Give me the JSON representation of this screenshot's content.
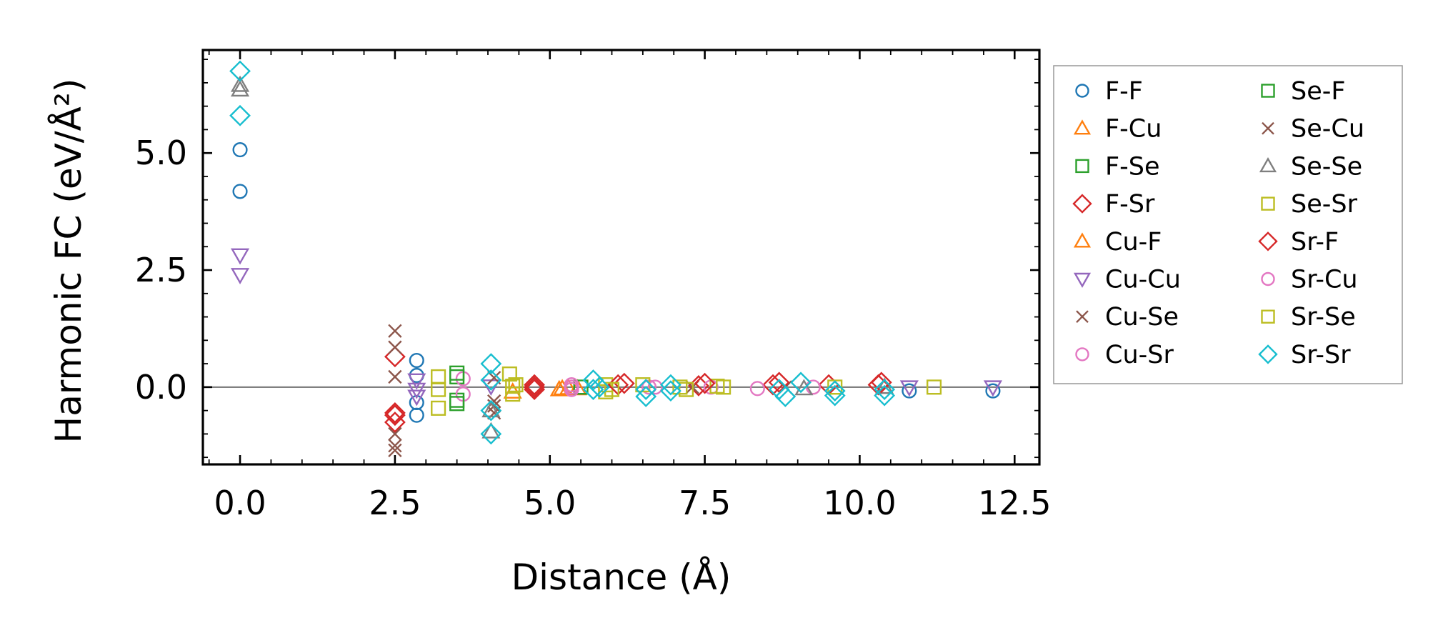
{
  "chart_data": {
    "type": "scatter",
    "xlabel": "Distance (Å)",
    "ylabel": "Harmonic FC (eV/Å²)",
    "xlim": [
      -0.6,
      12.9
    ],
    "ylim": [
      -1.65,
      7.2
    ],
    "xticks": [
      0.0,
      2.5,
      5.0,
      7.5,
      10.0,
      12.5
    ],
    "xtick_labels": [
      "0.0",
      "2.5",
      "5.0",
      "7.5",
      "10.0",
      "12.5"
    ],
    "yticks": [
      0.0,
      2.5,
      5.0
    ],
    "ytick_labels": [
      "0.0",
      "2.5",
      "5.0"
    ],
    "x_minor_step": 0.5,
    "y_minor_step": 0.5,
    "reference_line_y": 0.0,
    "legend_position": "outside-right",
    "legend_columns": 2,
    "series": [
      {
        "name": "F-F",
        "marker": "circle",
        "color": "#1f77b4",
        "points": [
          [
            0.0,
            5.07
          ],
          [
            0.0,
            4.18
          ],
          [
            2.85,
            0.57
          ],
          [
            2.85,
            0.25
          ],
          [
            2.85,
            -0.33
          ],
          [
            2.85,
            -0.6
          ],
          [
            10.8,
            -0.08
          ],
          [
            12.15,
            -0.08
          ]
        ]
      },
      {
        "name": "F-Cu",
        "marker": "triangle-up",
        "color": "#ff7f0e",
        "points": [
          [
            5.15,
            -0.05
          ],
          [
            5.3,
            -0.02
          ],
          [
            5.45,
            -0.03
          ]
        ]
      },
      {
        "name": "F-Se",
        "marker": "square",
        "color": "#2ca02c",
        "points": [
          [
            3.5,
            0.22
          ],
          [
            3.5,
            -0.28
          ],
          [
            5.5,
            0.0
          ]
        ]
      },
      {
        "name": "F-Sr",
        "marker": "diamond",
        "color": "#d62728",
        "points": [
          [
            2.5,
            0.65
          ],
          [
            2.5,
            -0.55
          ],
          [
            2.5,
            -0.75
          ],
          [
            4.75,
            0.05
          ],
          [
            4.75,
            -0.05
          ],
          [
            6.2,
            0.08
          ],
          [
            7.4,
            0.03
          ],
          [
            8.6,
            0.05
          ],
          [
            9.5,
            0.05
          ],
          [
            10.3,
            0.05
          ]
        ]
      },
      {
        "name": "Cu-F",
        "marker": "triangle-up",
        "color": "#ff7f0e",
        "points": [
          [
            4.4,
            -0.1
          ],
          [
            5.2,
            -0.03
          ]
        ]
      },
      {
        "name": "Cu-Cu",
        "marker": "triangle-down",
        "color": "#9467bd",
        "points": [
          [
            0.0,
            2.82
          ],
          [
            0.0,
            2.4
          ],
          [
            2.85,
            0.15
          ],
          [
            2.85,
            -0.05
          ],
          [
            2.85,
            -0.2
          ],
          [
            4.05,
            0.02
          ],
          [
            10.8,
            0.0
          ],
          [
            12.15,
            0.0
          ]
        ]
      },
      {
        "name": "Cu-Se",
        "marker": "x",
        "color": "#8c564b",
        "points": [
          [
            2.5,
            1.2
          ],
          [
            2.5,
            0.85
          ],
          [
            2.5,
            0.22
          ],
          [
            2.5,
            -1.0
          ],
          [
            2.5,
            -1.25
          ],
          [
            2.5,
            -1.35
          ],
          [
            4.1,
            0.2
          ],
          [
            4.1,
            -0.3
          ],
          [
            4.1,
            -0.55
          ],
          [
            8.8,
            0.0
          ]
        ]
      },
      {
        "name": "Cu-Sr",
        "marker": "circle",
        "color": "#e377c2",
        "points": [
          [
            3.6,
            0.18
          ],
          [
            3.6,
            -0.15
          ],
          [
            5.35,
            0.05
          ],
          [
            5.35,
            -0.05
          ],
          [
            6.6,
            0.0
          ],
          [
            7.6,
            0.0
          ],
          [
            8.35,
            -0.03
          ],
          [
            9.25,
            0.0
          ]
        ]
      },
      {
        "name": "Se-F",
        "marker": "square",
        "color": "#2ca02c",
        "points": [
          [
            3.5,
            0.3
          ],
          [
            3.5,
            -0.35
          ]
        ]
      },
      {
        "name": "Se-Cu",
        "marker": "x",
        "color": "#8c564b",
        "points": [
          [
            4.1,
            -0.4
          ],
          [
            7.3,
            0.0
          ]
        ]
      },
      {
        "name": "Se-Se",
        "marker": "triangle-up",
        "color": "#7f7f7f",
        "points": [
          [
            0.0,
            6.45
          ],
          [
            0.0,
            6.35
          ],
          [
            4.05,
            -0.95
          ],
          [
            4.05,
            -0.5
          ],
          [
            9.1,
            -0.03
          ],
          [
            10.4,
            0.0
          ]
        ]
      },
      {
        "name": "Se-Sr",
        "marker": "square",
        "color": "#bcbd22",
        "points": [
          [
            3.2,
            0.22
          ],
          [
            3.2,
            -0.05
          ],
          [
            3.2,
            -0.45
          ],
          [
            4.35,
            0.28
          ],
          [
            4.4,
            0.02
          ],
          [
            4.4,
            -0.15
          ],
          [
            5.9,
            0.05
          ],
          [
            5.9,
            -0.1
          ],
          [
            6.5,
            0.05
          ],
          [
            7.1,
            0.0
          ],
          [
            7.7,
            0.02
          ],
          [
            9.6,
            0.0
          ],
          [
            11.2,
            0.0
          ]
        ]
      },
      {
        "name": "Sr-F",
        "marker": "diamond",
        "color": "#d62728",
        "points": [
          [
            2.5,
            -0.6
          ],
          [
            4.75,
            0.0
          ],
          [
            6.1,
            0.05
          ],
          [
            7.5,
            0.08
          ],
          [
            8.7,
            0.1
          ],
          [
            10.35,
            0.1
          ]
        ]
      },
      {
        "name": "Sr-Cu",
        "marker": "circle",
        "color": "#e377c2",
        "points": [
          [
            5.35,
            0.0
          ],
          [
            6.7,
            0.0
          ]
        ]
      },
      {
        "name": "Sr-Se",
        "marker": "square",
        "color": "#bcbd22",
        "points": [
          [
            4.45,
            0.05
          ],
          [
            6.0,
            -0.05
          ],
          [
            7.2,
            -0.05
          ],
          [
            7.8,
            0.0
          ]
        ]
      },
      {
        "name": "Sr-Sr",
        "marker": "diamond",
        "color": "#17becf",
        "points": [
          [
            0.0,
            6.75
          ],
          [
            0.0,
            5.8
          ],
          [
            4.05,
            0.5
          ],
          [
            4.05,
            0.15
          ],
          [
            4.05,
            -0.5
          ],
          [
            4.05,
            -1.0
          ],
          [
            5.7,
            0.15
          ],
          [
            5.7,
            -0.05
          ],
          [
            5.8,
            0.0
          ],
          [
            6.55,
            -0.05
          ],
          [
            6.55,
            -0.2
          ],
          [
            6.95,
            0.05
          ],
          [
            6.95,
            -0.08
          ],
          [
            8.7,
            -0.05
          ],
          [
            8.8,
            -0.2
          ],
          [
            9.05,
            0.1
          ],
          [
            9.6,
            -0.08
          ],
          [
            9.6,
            -0.18
          ],
          [
            10.4,
            -0.05
          ],
          [
            10.4,
            -0.18
          ]
        ]
      }
    ]
  }
}
